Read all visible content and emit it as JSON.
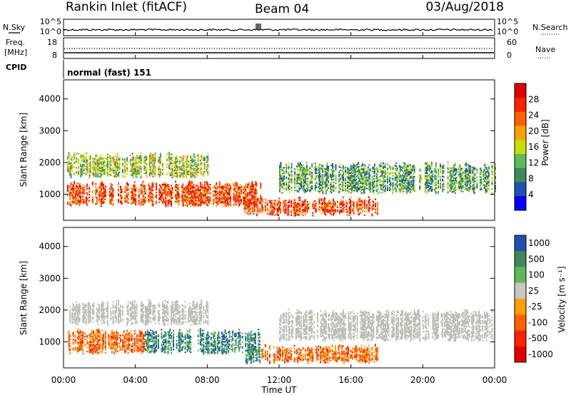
{
  "header": {
    "station": "Rankin Inlet (fitACF)",
    "beam": "Beam 04",
    "date": "03/Aug/2018"
  },
  "noise_panel": {
    "left_label": "N.Sky",
    "right_label": "N.Search",
    "left_ticks": [
      "10^5",
      "10^0"
    ],
    "right_ticks": [
      "10^5",
      "10^0"
    ]
  },
  "freq_panel": {
    "left_label_1": "Freq.",
    "left_label_2": "[MHz]",
    "right_label": "Nave",
    "left_ticks": [
      "18",
      "8"
    ],
    "right_ticks": [
      "60",
      "0"
    ]
  },
  "cpid_panel": {
    "label": "CPID",
    "program": "normal (fast) 151"
  },
  "colors": {
    "power_scale": [
      "#0000ff",
      "#2050b0",
      "#3f8a5a",
      "#5cba5a",
      "#c8e000",
      "#ffa000",
      "#ff6000",
      "#ff2000",
      "#e00000"
    ],
    "velocity_scale": [
      "#2050b0",
      "#3f8a5a",
      "#5cba5a",
      "#c8c8c0",
      "#ffa000",
      "#ff6000",
      "#ff2000",
      "#e00000"
    ],
    "ground_scatter": "#bebeb6"
  },
  "chart_data": [
    {
      "type": "heatmap",
      "name": "power",
      "ylabel": "Slant Range [km]",
      "colorbar_label": "Power [dB]",
      "colorbar_ticks": [
        "28",
        "24",
        "20",
        "16",
        "12",
        "8",
        "4"
      ],
      "yticks": [
        "4000",
        "3000",
        "2000",
        "1000"
      ],
      "ylim": [
        180,
        4600
      ],
      "xlim": [
        0,
        24
      ],
      "echo_bands": [
        {
          "x_start": 0.2,
          "x_end": 11.0,
          "range_low": 600,
          "range_high": 1400,
          "level": "high"
        },
        {
          "x_start": 0.2,
          "x_end": 8.0,
          "range_low": 1500,
          "range_high": 2300,
          "level": "mid"
        },
        {
          "x_start": 10.0,
          "x_end": 17.5,
          "range_low": 300,
          "range_high": 900,
          "level": "high"
        },
        {
          "x_start": 12.0,
          "x_end": 24.0,
          "range_low": 1000,
          "range_high": 2000,
          "level": "low"
        }
      ]
    },
    {
      "type": "heatmap",
      "name": "velocity",
      "ylabel": "Slant Range [km]",
      "colorbar_label": "Velocity [m s⁻¹]",
      "colorbar_ticks": [
        "1000",
        "500",
        "100",
        "25",
        "-25",
        "-100",
        "-500",
        "-1000"
      ],
      "yticks": [
        "4000",
        "3000",
        "2000",
        "1000"
      ],
      "ylim": [
        180,
        4600
      ],
      "xlim": [
        0,
        24
      ],
      "xlabel": "Time UT",
      "xticks": [
        "00:00",
        "04:00",
        "08:00",
        "12:00",
        "16:00",
        "20:00",
        "00:00"
      ]
    }
  ]
}
